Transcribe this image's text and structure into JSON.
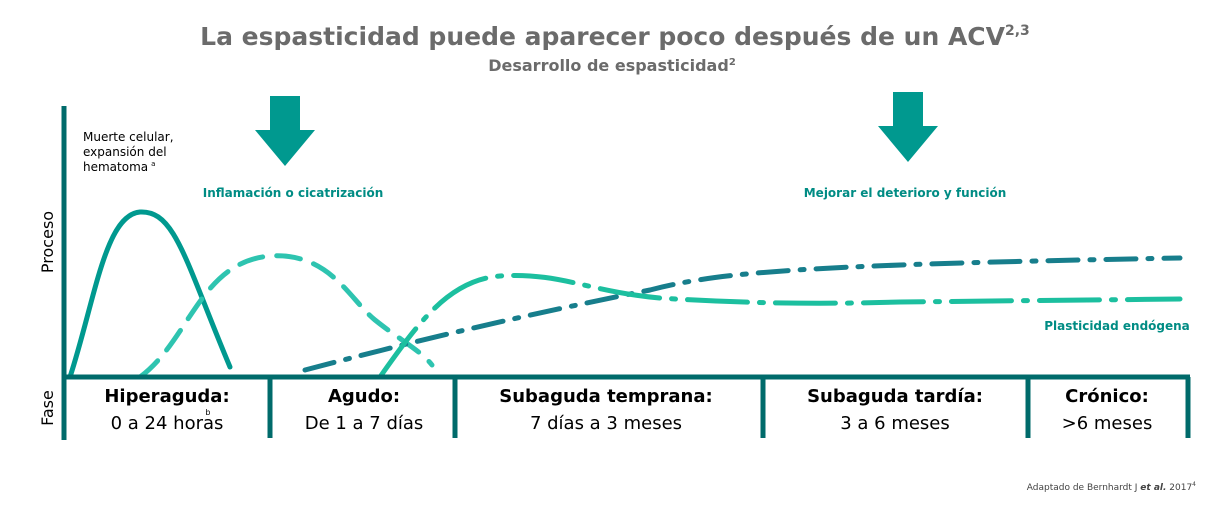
{
  "header": {
    "title": "La espasticidad puede aparecer poco después de un ACV",
    "title_sup": "2,3",
    "subtitle": "Desarrollo de espasticidad",
    "subtitle_sup": "2"
  },
  "axes": {
    "process": "Proceso",
    "phase": "Fase"
  },
  "annotations": {
    "cell_death": [
      "Muerte celular,",
      "expansión del",
      "hematoma"
    ],
    "cell_death_sup": "a",
    "inflammation": "Inflamación o cicatrización",
    "improvement": "Mejorar el deterioro y función",
    "plasticity": "Plasticidad endógena"
  },
  "phases": [
    {
      "name": "Hiperaguda:",
      "range": "0 a 24 horas",
      "sup": "b"
    },
    {
      "name": "Agudo:",
      "range": "De 1 a 7 días"
    },
    {
      "name": "Subaguda temprana:",
      "range": "7 días a 3 meses"
    },
    {
      "name": "Subaguda tardía:",
      "range": "3 a 6 meses"
    },
    {
      "name": "Crónico:",
      "range": ">6 meses"
    }
  ],
  "source": {
    "text": "Adaptado de Bernhardt J ",
    "italic": "et al.",
    "year": " 2017",
    "sup": "4"
  }
}
